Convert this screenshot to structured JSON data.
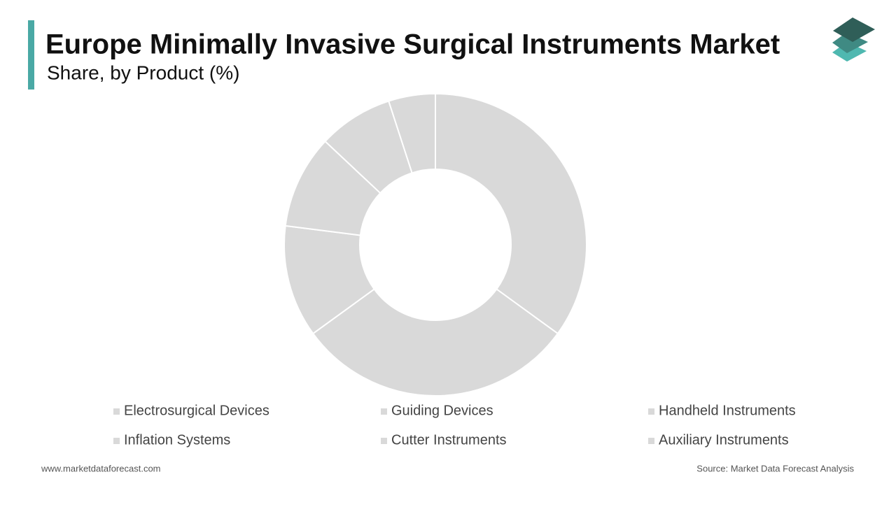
{
  "chart_data": {
    "type": "pie",
    "title": "Europe Minimally Invasive Surgical Instruments Market",
    "subtitle": "Share, by Product (%)",
    "categories": [
      "Electrosurgical Devices",
      "Guiding Devices",
      "Handheld Instruments",
      "Inflation Systems",
      "Cutter Instruments",
      "Auxiliary Instruments"
    ],
    "values": [
      35,
      30,
      12,
      10,
      8,
      5
    ],
    "color": "#d9d9d9",
    "footer_left": "www.marketdataforecast.com",
    "footer_right": "Source: Market Data Forecast Analysis"
  }
}
